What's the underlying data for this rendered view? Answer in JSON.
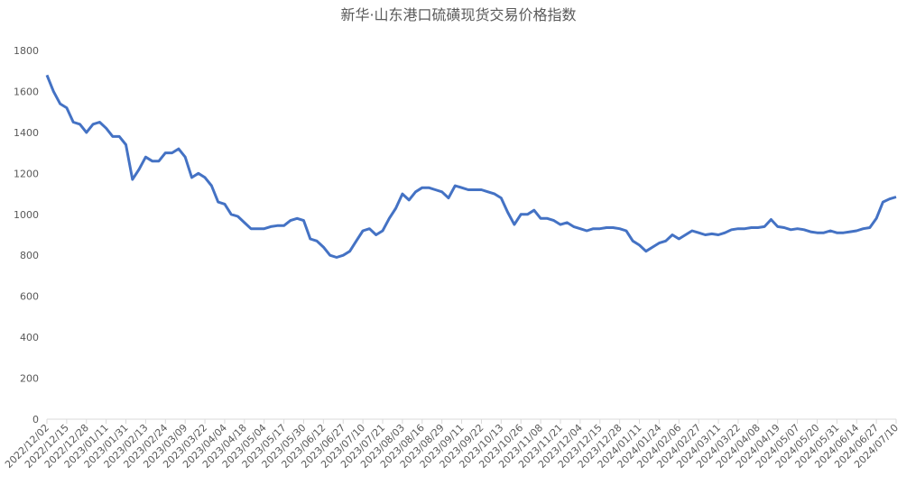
{
  "chart_data": {
    "type": "line",
    "title": "新华·山东港口硫磺现货交易价格指数",
    "categories": [
      "2022/12/02",
      null,
      null,
      "2022/12/15",
      null,
      null,
      "2022/12/28",
      null,
      null,
      "2023/01/11",
      null,
      null,
      "2023/01/31",
      null,
      null,
      "2023/02/13",
      null,
      null,
      "2023/02/24",
      null,
      null,
      "2023/03/09",
      null,
      null,
      "2023/03/22",
      null,
      null,
      "2023/04/04",
      null,
      null,
      "2023/04/18",
      null,
      null,
      "2023/05/04",
      null,
      null,
      "2023/05/17",
      null,
      null,
      "2023/05/30",
      null,
      null,
      "2023/06/12",
      null,
      null,
      "2023/06/27",
      null,
      null,
      "2023/07/10",
      null,
      null,
      "2023/07/21",
      null,
      null,
      "2023/08/03",
      null,
      null,
      "2023/08/16",
      null,
      null,
      "2023/08/29",
      null,
      null,
      "2023/09/11",
      null,
      null,
      "2023/09/22",
      null,
      null,
      "2023/10/13",
      null,
      null,
      "2023/10/26",
      null,
      null,
      "2023/11/08",
      null,
      null,
      "2023/11/21",
      null,
      null,
      "2023/12/04",
      null,
      null,
      "2023/12/15",
      null,
      null,
      "2023/12/28",
      null,
      null,
      "2024/01/11",
      null,
      null,
      "2024/01/24",
      null,
      null,
      "2024/02/06",
      null,
      null,
      "2024/02/27",
      null,
      null,
      "2024/03/11",
      null,
      null,
      "2024/03/22",
      null,
      null,
      "2024/04/08",
      null,
      null,
      "2024/04/19",
      null,
      null,
      "2024/05/07",
      null,
      null,
      "2024/05/20",
      null,
      null,
      "2024/05/31",
      null,
      null,
      "2024/06/14",
      null,
      null,
      "2024/06/27",
      null,
      null,
      "2024/07/10"
    ],
    "values": [
      1680,
      1600,
      1540,
      1520,
      1450,
      1440,
      1400,
      1440,
      1450,
      1420,
      1380,
      1380,
      1340,
      1170,
      1220,
      1280,
      1260,
      1260,
      1300,
      1300,
      1320,
      1280,
      1180,
      1200,
      1180,
      1140,
      1060,
      1050,
      1000,
      990,
      960,
      930,
      930,
      930,
      940,
      945,
      945,
      970,
      980,
      970,
      880,
      870,
      840,
      800,
      790,
      800,
      820,
      870,
      920,
      930,
      900,
      920,
      980,
      1030,
      1100,
      1070,
      1110,
      1130,
      1130,
      1120,
      1110,
      1080,
      1140,
      1130,
      1120,
      1120,
      1120,
      1110,
      1100,
      1080,
      1010,
      950,
      1000,
      1000,
      1020,
      980,
      980,
      970,
      950,
      960,
      940,
      930,
      920,
      930,
      930,
      935,
      935,
      930,
      920,
      870,
      850,
      820,
      840,
      860,
      870,
      900,
      880,
      900,
      920,
      910,
      900,
      905,
      900,
      910,
      925,
      930,
      930,
      935,
      935,
      940,
      975,
      940,
      935,
      925,
      930,
      925,
      915,
      910,
      910,
      920,
      910,
      910,
      915,
      920,
      930,
      935,
      980,
      1060,
      1075,
      1085
    ],
    "color": "#4472c4",
    "ylim": [
      0,
      1800
    ],
    "yticks": [
      0,
      200,
      400,
      600,
      800,
      1000,
      1200,
      1400,
      1600,
      1800
    ],
    "grid": false
  }
}
